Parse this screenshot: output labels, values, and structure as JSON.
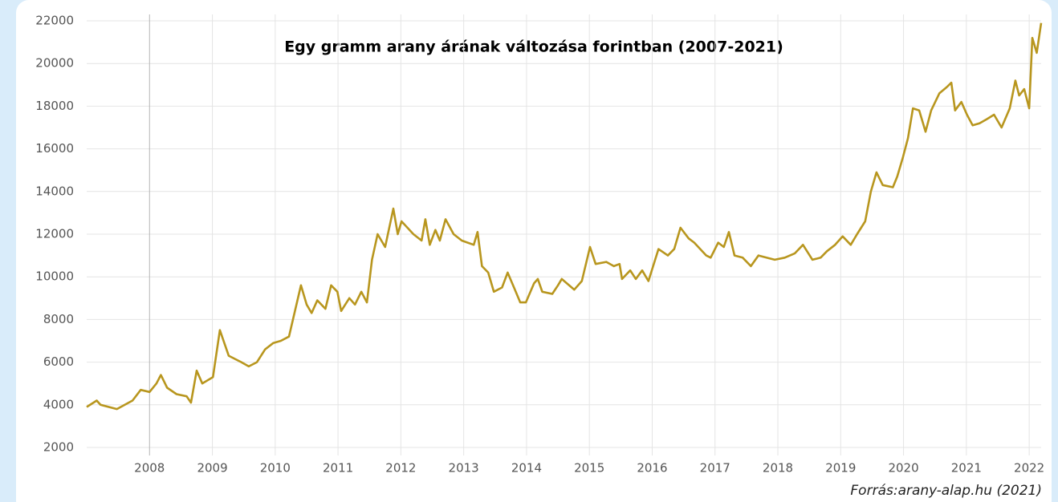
{
  "chart_data": {
    "type": "line",
    "title": "Egy gramm arany árának változása forintban (2007-2021)",
    "source": "Forrás:arany-alap.hu (2021)",
    "x": [
      2007.0,
      2007.16,
      2007.22,
      2007.48,
      2007.73,
      2007.86,
      2008.0,
      2008.11,
      2008.18,
      2008.28,
      2008.43,
      2008.59,
      2008.66,
      2008.75,
      2008.84,
      2009.01,
      2009.12,
      2009.26,
      2009.46,
      2009.58,
      2009.71,
      2009.84,
      2009.97,
      2010.09,
      2010.22,
      2010.41,
      2010.5,
      2010.58,
      2010.67,
      2010.8,
      2010.89,
      2010.99,
      2011.05,
      2011.18,
      2011.27,
      2011.37,
      2011.46,
      2011.54,
      2011.63,
      2011.75,
      2011.88,
      2011.95,
      2012.01,
      2012.2,
      2012.33,
      2012.39,
      2012.46,
      2012.55,
      2012.62,
      2012.71,
      2012.84,
      2012.97,
      2013.16,
      2013.22,
      2013.29,
      2013.39,
      2013.48,
      2013.61,
      2013.7,
      2013.8,
      2013.9,
      2013.99,
      2014.12,
      2014.18,
      2014.25,
      2014.41,
      2014.5,
      2014.56,
      2014.76,
      2014.88,
      2015.01,
      2015.1,
      2015.27,
      2015.39,
      2015.48,
      2015.52,
      2015.65,
      2015.74,
      2015.84,
      2015.94,
      2016.1,
      2016.25,
      2016.35,
      2016.45,
      2016.58,
      2016.67,
      2016.86,
      2016.93,
      2017.05,
      2017.14,
      2017.22,
      2017.31,
      2017.44,
      2017.57,
      2017.69,
      2017.82,
      2017.95,
      2018.11,
      2018.27,
      2018.4,
      2018.55,
      2018.68,
      2018.78,
      2018.91,
      2019.03,
      2019.16,
      2019.26,
      2019.39,
      2019.48,
      2019.57,
      2019.67,
      2019.83,
      2019.9,
      2019.99,
      2020.07,
      2020.15,
      2020.25,
      2020.35,
      2020.44,
      2020.57,
      2020.69,
      2020.76,
      2020.82,
      2020.92,
      2021.01,
      2021.1,
      2021.21,
      2021.33,
      2021.44,
      2021.56,
      2021.69,
      2021.78,
      2021.84,
      2021.92,
      2022.0,
      2022.05,
      2022.12,
      2022.19
    ],
    "series": [
      {
        "color": "#b8961e",
        "values": [
          3900,
          4200,
          4000,
          3800,
          4200,
          4700,
          4600,
          5000,
          5400,
          4800,
          4500,
          4400,
          4100,
          5600,
          5000,
          5300,
          7500,
          6300,
          6000,
          5800,
          6000,
          6600,
          6900,
          7000,
          7200,
          9600,
          8700,
          8300,
          8900,
          8500,
          9600,
          9300,
          8400,
          9000,
          8700,
          9300,
          8800,
          10800,
          12000,
          11400,
          13200,
          12000,
          12600,
          12000,
          11700,
          12700,
          11500,
          12200,
          11700,
          12700,
          12000,
          11700,
          11500,
          12100,
          10500,
          10200,
          9300,
          9500,
          10200,
          9500,
          8800,
          8800,
          9700,
          9900,
          9300,
          9200,
          9600,
          9900,
          9400,
          9800,
          11400,
          10600,
          10700,
          10500,
          10600,
          9900,
          10300,
          9900,
          10300,
          9800,
          11300,
          11000,
          11300,
          12300,
          11800,
          11600,
          11000,
          10900,
          11600,
          11400,
          12100,
          11000,
          10900,
          10500,
          11000,
          10900,
          10800,
          10900,
          11100,
          11500,
          10800,
          10900,
          11200,
          11500,
          11900,
          11500,
          12000,
          12600,
          14000,
          14900,
          14300,
          14200,
          14700,
          15600,
          16500,
          17900,
          17800,
          16800,
          17800,
          18600,
          18900,
          19100,
          17800,
          18200,
          17600,
          17100,
          17200,
          17400,
          17600,
          17000,
          17900,
          19200,
          18500,
          18800,
          17900,
          21200,
          20500,
          21900
        ]
      }
    ],
    "xlim": [
      2007.0,
      2022.19
    ],
    "xticks": [
      2008,
      2009,
      2010,
      2011,
      2012,
      2013,
      2014,
      2015,
      2016,
      2017,
      2018,
      2019,
      2020,
      2021,
      2022
    ],
    "ylim": [
      2000,
      22000
    ],
    "yticks": [
      2000,
      4000,
      6000,
      8000,
      10000,
      12000,
      14000,
      16000,
      18000,
      20000,
      22000
    ],
    "grid": true
  }
}
